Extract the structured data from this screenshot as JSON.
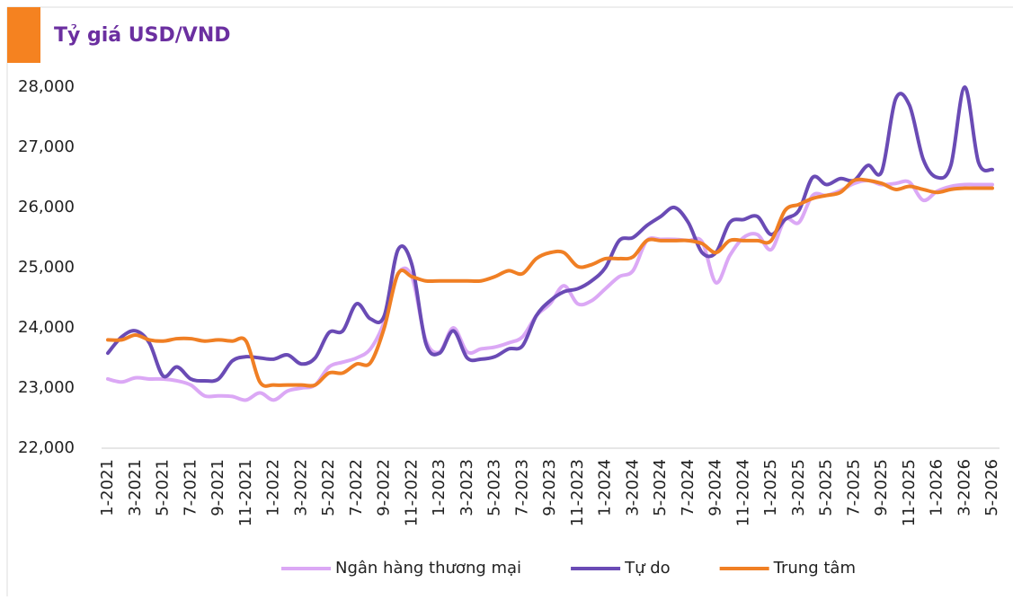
{
  "chart_data": {
    "type": "line",
    "title": "Tỷ giá USD/VND",
    "categories": [
      "1-2021",
      null,
      "3-2021",
      null,
      "5-2021",
      null,
      "7-2021",
      null,
      "9-2021",
      null,
      "11-2021",
      null,
      "1-2022",
      null,
      "3-2022",
      null,
      "5-2022",
      null,
      "7-2022",
      null,
      "9-2022",
      null,
      "11-2022",
      null,
      "1-2023",
      null,
      "3-2023",
      null,
      "5-2023",
      null,
      "7-2023",
      null,
      "9-2023",
      null,
      "11-2023",
      null,
      "1-2024",
      null,
      "3-2024",
      null,
      "5-2024",
      null,
      "7-2024",
      null,
      "9-2024",
      null,
      "11-2024",
      null,
      "1-2025",
      null,
      "3-2025",
      null,
      "5-2025",
      null,
      "7-2025",
      null,
      "9-2025",
      null,
      "11-2025",
      null,
      "1-2026",
      null,
      "3-2026",
      null,
      "5-2026"
    ],
    "series": [
      {
        "name": "Ngân hàng thương mại",
        "color": "#dba8f5",
        "values": [
          23150,
          23100,
          23170,
          23150,
          23150,
          23120,
          23050,
          22870,
          22870,
          22860,
          22800,
          22920,
          22800,
          22950,
          23000,
          23050,
          23350,
          23430,
          23500,
          23650,
          24100,
          24900,
          24850,
          23800,
          23600,
          24000,
          23600,
          23650,
          23680,
          23750,
          23850,
          24200,
          24400,
          24700,
          24400,
          24450,
          24650,
          24850,
          24950,
          25450,
          25470,
          25470,
          25450,
          25430,
          24750,
          25200,
          25500,
          25550,
          25300,
          25800,
          25750,
          26200,
          26200,
          26280,
          26400,
          26450,
          26380,
          26400,
          26420,
          26120,
          26270,
          26350,
          26380,
          26380,
          26380
        ]
      },
      {
        "name": "Tự do",
        "color": "#6a4bb5",
        "values": [
          23580,
          23850,
          23950,
          23750,
          23200,
          23350,
          23150,
          23120,
          23150,
          23450,
          23520,
          23500,
          23480,
          23550,
          23400,
          23500,
          23920,
          23950,
          24400,
          24150,
          24200,
          25300,
          25050,
          23750,
          23580,
          23950,
          23500,
          23480,
          23520,
          23650,
          23700,
          24200,
          24450,
          24600,
          24650,
          24780,
          25000,
          25450,
          25500,
          25700,
          25850,
          26000,
          25750,
          25250,
          25250,
          25750,
          25800,
          25850,
          25550,
          25800,
          25950,
          26500,
          26380,
          26480,
          26450,
          26700,
          26600,
          27800,
          27700,
          26800,
          26500,
          26700,
          28000,
          26750,
          26630
        ]
      },
      {
        "name": "Trung tâm",
        "color": "#f07f24",
        "values": [
          23800,
          23800,
          23880,
          23800,
          23780,
          23820,
          23820,
          23780,
          23800,
          23780,
          23780,
          23100,
          23050,
          23050,
          23050,
          23050,
          23250,
          23250,
          23400,
          23420,
          24000,
          24900,
          24850,
          24780,
          24780,
          24780,
          24780,
          24780,
          24850,
          24950,
          24900,
          25150,
          25250,
          25250,
          25020,
          25050,
          25150,
          25150,
          25180,
          25450,
          25450,
          25450,
          25450,
          25400,
          25250,
          25450,
          25450,
          25450,
          25450,
          25950,
          26050,
          26150,
          26200,
          26250,
          26450,
          26450,
          26400,
          26300,
          26350,
          26300,
          26250,
          26300,
          26320,
          26320,
          26320
        ]
      }
    ],
    "ylim": [
      22000,
      28000
    ],
    "yticks": [
      {
        "value": 22000,
        "label": "22,000"
      },
      {
        "value": 23000,
        "label": "23,000"
      },
      {
        "value": 24000,
        "label": "24,000"
      },
      {
        "value": 25000,
        "label": "25,000"
      },
      {
        "value": 26000,
        "label": "26,000"
      },
      {
        "value": 27000,
        "label": "27,000"
      },
      {
        "value": 28000,
        "label": "28,000"
      }
    ],
    "grid": false,
    "legend": "bottom"
  }
}
